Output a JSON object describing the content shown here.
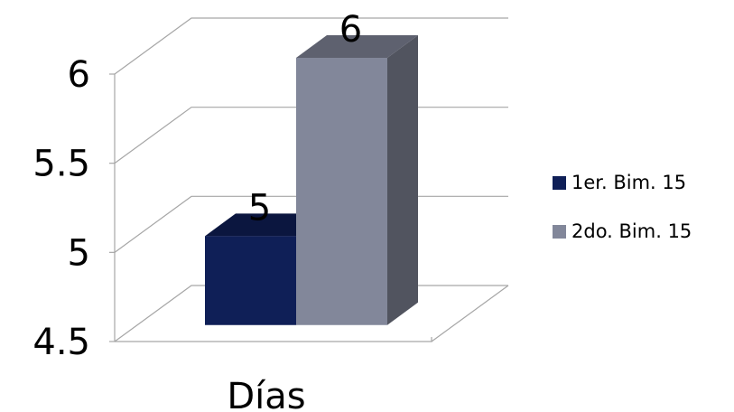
{
  "chart_data": {
    "type": "bar",
    "categories": [
      "Días"
    ],
    "series": [
      {
        "name": "1er. Bim. 15",
        "values": [
          5
        ],
        "color": "#0f1f57"
      },
      {
        "name": "2do. Bim. 15",
        "values": [
          6
        ],
        "color": "#82879a"
      }
    ],
    "data_labels": [
      "5",
      "6"
    ],
    "ylim": [
      4.5,
      6
    ],
    "yticks": [
      "4.5",
      "5",
      "5.5",
      "6"
    ],
    "grid": true,
    "legend_position": "right",
    "style": "3d-clustered-column"
  }
}
